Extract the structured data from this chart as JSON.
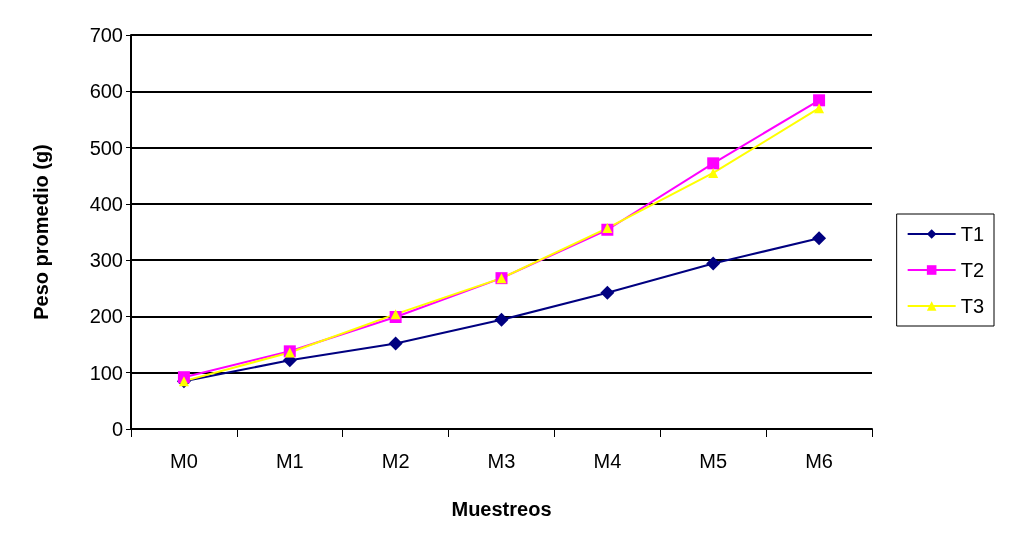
{
  "chart_data": {
    "type": "line",
    "xlabel": "Muestreos",
    "ylabel": "Peso promedio (g)",
    "categories": [
      "M0",
      "M1",
      "M2",
      "M3",
      "M4",
      "M5",
      "M6"
    ],
    "series": [
      {
        "name": "T1",
        "color": "#000080",
        "marker": "diamond",
        "values": [
          85,
          122,
          152,
          194,
          242,
          294,
          339
        ]
      },
      {
        "name": "T2",
        "color": "#ff00ff",
        "marker": "square",
        "values": [
          92,
          138,
          199,
          268,
          354,
          472,
          584
        ]
      },
      {
        "name": "T3",
        "color": "#ffff00",
        "marker": "triangle",
        "values": [
          85,
          136,
          204,
          268,
          357,
          455,
          570
        ]
      }
    ],
    "ylim": [
      0,
      700
    ],
    "yticks": [
      0,
      100,
      200,
      300,
      400,
      500,
      600,
      700
    ],
    "grid": "y",
    "legend": "right"
  }
}
